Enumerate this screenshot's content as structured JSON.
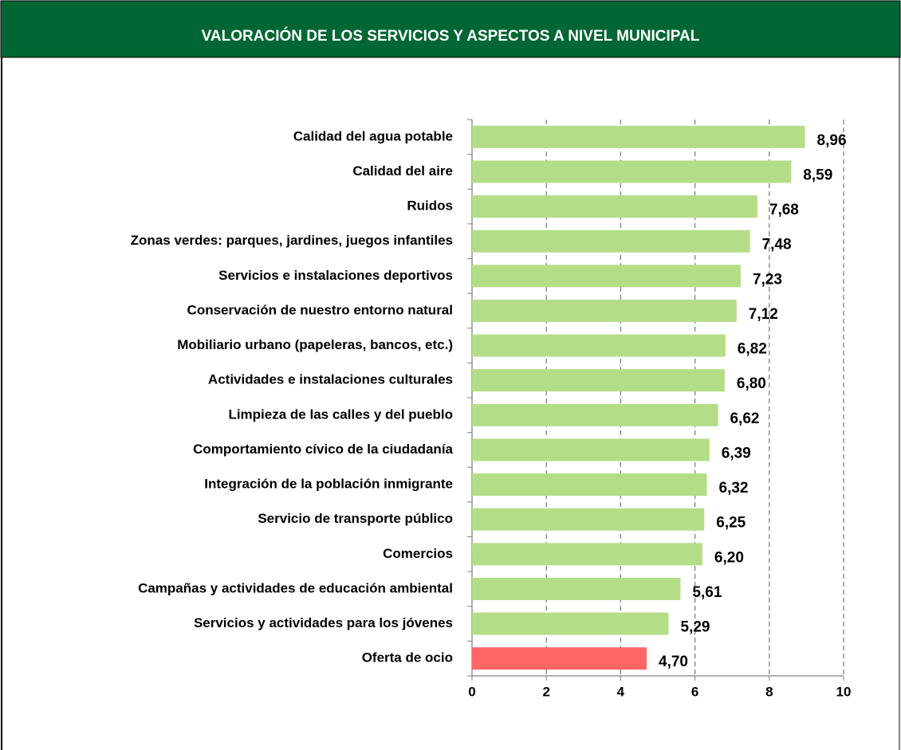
{
  "chart_data": {
    "type": "barh",
    "title": "VALORACIÓN DE LOS SERVICIOS Y ASPECTOS A NIVEL MUNICIPAL",
    "categories": [
      "Calidad del agua potable",
      "Calidad del aire",
      "Ruidos",
      "Zonas verdes: parques, jardines, juegos infantiles",
      "Servicios e instalaciones deportivos",
      "Conservación de nuestro entorno natural",
      "Mobiliario urbano (papeleras, bancos, etc.)",
      "Actividades e instalaciones culturales",
      "Limpieza de las calles y del pueblo",
      "Comportamiento cívico de la ciudadanía",
      "Integración de la población inmigrante",
      "Servicio de transporte público",
      "Comercios",
      "Campañas y actividades de educación ambiental",
      "Servicios y actividades para los jóvenes",
      "Oferta de ocio"
    ],
    "values": [
      8.96,
      8.59,
      7.68,
      7.48,
      7.23,
      7.12,
      6.82,
      6.8,
      6.62,
      6.39,
      6.32,
      6.25,
      6.2,
      5.61,
      5.29,
      4.7
    ],
    "value_labels": [
      "8,96",
      "8,59",
      "7,68",
      "7,48",
      "7,23",
      "7,12",
      "6,82",
      "6,80",
      "6,62",
      "6,39",
      "6,32",
      "6,25",
      "6,20",
      "5,61",
      "5,29",
      "4,70"
    ],
    "colors": [
      "#b3de87",
      "#b3de87",
      "#b3de87",
      "#b3de87",
      "#b3de87",
      "#b3de87",
      "#b3de87",
      "#b3de87",
      "#b3de87",
      "#b3de87",
      "#b3de87",
      "#b3de87",
      "#b3de87",
      "#b3de87",
      "#b3de87",
      "#ff6666"
    ],
    "xlim": [
      0,
      10
    ],
    "xticks": [
      0,
      2,
      4,
      6,
      8,
      10
    ],
    "grid": true
  }
}
